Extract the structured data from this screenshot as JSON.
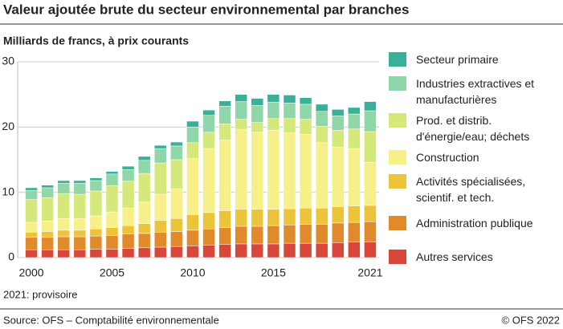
{
  "chart_data": {
    "type": "stacked_bar",
    "title": "Valeur ajoutée brute du secteur environnemental par branches",
    "subtitle": "Milliards de francs, à prix courants",
    "note": "2021: provisoire",
    "source": "Source: OFS – Comptabilité environnementale",
    "copyright": "© OFS 2022",
    "categories": [
      "2000",
      null,
      null,
      null,
      null,
      "2005",
      null,
      null,
      null,
      null,
      "2010",
      null,
      null,
      null,
      null,
      "2015",
      null,
      null,
      null,
      null,
      null,
      "2021"
    ],
    "ylim": [
      0,
      30
    ],
    "yticks": [
      0,
      10,
      20,
      30
    ],
    "grid": true,
    "legend": "right",
    "series": [
      {
        "name": "Autres services",
        "color": "#d9473a",
        "values": [
          1.2,
          1.2,
          1.2,
          1.2,
          1.3,
          1.3,
          1.4,
          1.5,
          1.6,
          1.7,
          1.8,
          1.9,
          2.0,
          2.1,
          2.1,
          2.1,
          2.2,
          2.2,
          2.2,
          2.3,
          2.4,
          2.4
        ]
      },
      {
        "name": "Administration publique",
        "color": "#e08a2c",
        "values": [
          1.9,
          1.9,
          2.0,
          2.0,
          2.0,
          2.1,
          2.2,
          2.2,
          2.3,
          2.3,
          2.4,
          2.5,
          2.6,
          2.7,
          2.7,
          2.8,
          2.8,
          2.9,
          2.9,
          3.0,
          3.0,
          3.1
        ]
      },
      {
        "name": "Activités spécialisées,\nscientif. et tech.",
        "color": "#ecc43a",
        "values": [
          0.8,
          0.9,
          1.0,
          1.0,
          1.1,
          1.2,
          1.3,
          1.5,
          1.8,
          2.0,
          2.4,
          2.5,
          2.6,
          2.6,
          2.6,
          2.5,
          2.5,
          2.5,
          2.5,
          2.5,
          2.5,
          2.5
        ]
      },
      {
        "name": "Construction",
        "color": "#f7ef87",
        "values": [
          1.5,
          1.6,
          1.8,
          1.8,
          2.0,
          2.4,
          2.7,
          3.3,
          4.0,
          4.5,
          8.6,
          9.8,
          10.8,
          12.2,
          11.8,
          12.1,
          11.6,
          11.3,
          10.0,
          9.1,
          8.8,
          6.6
        ]
      },
      {
        "name": "Prod. et distrib.\nd'énergie/eau; déchets",
        "color": "#d5e97a",
        "values": [
          3.5,
          3.6,
          3.8,
          3.7,
          3.8,
          4.0,
          4.1,
          4.4,
          4.8,
          4.5,
          2.4,
          2.5,
          2.5,
          1.6,
          1.5,
          1.8,
          2.2,
          2.3,
          2.5,
          2.6,
          3.0,
          4.7
        ]
      },
      {
        "name": "Industries extractives et\nmanufacturières",
        "color": "#8fd6a8",
        "values": [
          1.4,
          1.5,
          1.6,
          1.7,
          1.6,
          1.8,
          1.8,
          2.0,
          2.2,
          2.1,
          2.4,
          2.6,
          2.7,
          2.7,
          2.6,
          2.5,
          2.4,
          2.3,
          2.3,
          2.2,
          2.3,
          3.2
        ]
      },
      {
        "name": "Secteur primaire",
        "color": "#3aaf9a",
        "values": [
          0.4,
          0.4,
          0.4,
          0.4,
          0.4,
          0.4,
          0.5,
          0.6,
          0.5,
          0.6,
          0.9,
          0.8,
          0.8,
          1.1,
          1.1,
          1.2,
          1.2,
          1.0,
          1.1,
          1.0,
          1.0,
          1.4
        ]
      }
    ]
  }
}
